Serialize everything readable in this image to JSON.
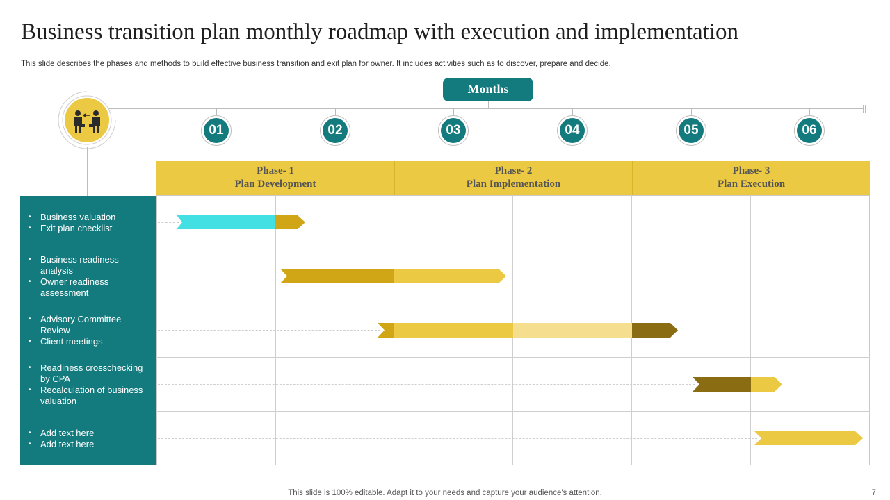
{
  "title": "Business transition plan monthly roadmap with execution and implementation",
  "subtitle": "This slide describes the phases and methods to build effective business transition and exit plan for owner. It includes activities such as to discover, prepare and decide.",
  "months_label": "Months",
  "months": [
    "01",
    "02",
    "03",
    "04",
    "05",
    "06"
  ],
  "phases": [
    {
      "name": "Phase- 1",
      "title": "Plan Development"
    },
    {
      "name": "Phase- 2",
      "title": "Plan Implementation"
    },
    {
      "name": "Phase- 3",
      "title": "Plan Execution"
    }
  ],
  "rows": [
    {
      "items": [
        "Business valuation",
        "Exit plan checklist"
      ]
    },
    {
      "items": [
        "Business readiness analysis",
        "Owner readiness assessment"
      ]
    },
    {
      "items": [
        "Advisory Committee Review",
        "Client meetings"
      ]
    },
    {
      "items": [
        "Readiness crosschecking by CPA",
        "Recalculation of business valuation"
      ]
    },
    {
      "items": [
        "Add text here",
        "Add text here"
      ]
    }
  ],
  "icon": "business-handover-icon",
  "colors": {
    "teal": "#137a7d",
    "yellow": "#ecc942",
    "dark_gold": "#d0a617",
    "light_yellow": "#f5de8d",
    "olive": "#8a6d12",
    "cyan": "#42dfe3"
  },
  "footer": "This slide is 100% editable. Adapt it to your needs and capture your audience's attention.",
  "page_number": "7"
}
